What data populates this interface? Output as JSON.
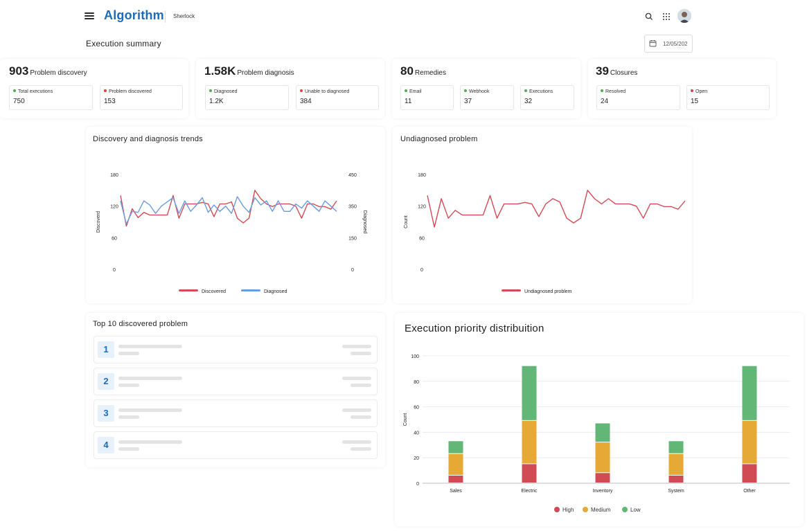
{
  "header": {
    "app_name": "Algorithm",
    "product": "Sherlock",
    "page_title": "Execution summary",
    "date_value": "12/05/202",
    "icons": [
      "menu-icon",
      "search-icon",
      "apps-grid-icon",
      "user-avatar"
    ]
  },
  "summary": [
    {
      "value": "903",
      "label": "Problem discovery",
      "stats": [
        {
          "label": "Total executions",
          "value": "750",
          "color": "#4caf50"
        },
        {
          "label": "Problem discovered",
          "value": "153",
          "color": "#d9453b"
        }
      ]
    },
    {
      "value": "1.58K",
      "label": "Problem diagnosis",
      "stats": [
        {
          "label": "Diagnosed",
          "value": "1.2K",
          "color": "#4caf50"
        },
        {
          "label": "Unable to diagnosed",
          "value": "384",
          "color": "#d9453b"
        }
      ]
    },
    {
      "value": "80",
      "label": "Remedies",
      "stats": [
        {
          "label": "Email",
          "value": "11",
          "color": "#4caf50"
        },
        {
          "label": "Webhook",
          "value": "37",
          "color": "#4caf50"
        },
        {
          "label": "Executions",
          "value": "32",
          "color": "#4caf50"
        }
      ]
    },
    {
      "value": "39",
      "label": "Closures",
      "stats": [
        {
          "label": "Resolved",
          "value": "24",
          "color": "#4caf50"
        },
        {
          "label": "Open",
          "value": "15",
          "color": "#d9453b"
        }
      ]
    }
  ],
  "top10": {
    "title": "Top 10 discovered problem",
    "ranks": [
      "1",
      "2",
      "3",
      "4"
    ]
  },
  "chart_data": [
    {
      "type": "line",
      "title": "Discovery and diagnosis trends",
      "ylabel": "Discoverd",
      "y2label": "Diagnosed",
      "ylim": [
        0,
        180
      ],
      "y2lim": [
        0,
        450
      ],
      "yticks": [
        "0",
        "60",
        "120",
        "180"
      ],
      "y2ticks": [
        "0",
        "150",
        "350",
        "450"
      ],
      "legend": "bottom",
      "grid": false,
      "series": [
        {
          "name": "Discovered",
          "axis": "left",
          "color": "#d14b55",
          "values": [
            140,
            82,
            115,
            98,
            108,
            103,
            103,
            103,
            103,
            140,
            97,
            124,
            124,
            124,
            127,
            124,
            100,
            124,
            124,
            128,
            97,
            88,
            97,
            150,
            134,
            124,
            119,
            124,
            124,
            124,
            120,
            97,
            124,
            124,
            119,
            119,
            114,
            130
          ]
        },
        {
          "name": "Diagnosed",
          "axis": "right",
          "color": "#6a9be0",
          "values": [
            325,
            215,
            275,
            270,
            325,
            305,
            265,
            300,
            320,
            340,
            265,
            325,
            275,
            305,
            340,
            270,
            305,
            275,
            300,
            265,
            345,
            300,
            270,
            340,
            305,
            325,
            275,
            325,
            275,
            275,
            310,
            290,
            325,
            300,
            275,
            325,
            300,
            275
          ]
        }
      ]
    },
    {
      "type": "line",
      "title": "Undiagnosed problem",
      "ylabel": "Count",
      "ylim": [
        0,
        180
      ],
      "yticks": [
        "0",
        "60",
        "120",
        "180"
      ],
      "legend": "bottom",
      "grid": false,
      "series": [
        {
          "name": "Undiagnosed problem",
          "color": "#d14b55",
          "values": [
            140,
            80,
            134,
            97,
            112,
            103,
            103,
            103,
            103,
            140,
            97,
            124,
            124,
            124,
            127,
            124,
            100,
            124,
            134,
            128,
            97,
            88,
            97,
            150,
            134,
            124,
            134,
            124,
            124,
            124,
            120,
            97,
            124,
            124,
            119,
            119,
            114,
            130
          ]
        }
      ]
    },
    {
      "type": "bar",
      "stacked": true,
      "title": "Execution priority distribuition",
      "ylabel": "Count",
      "ylim": [
        0,
        100
      ],
      "yticks": [
        "0",
        "20",
        "40",
        "60",
        "80",
        "100"
      ],
      "grid": true,
      "legend": "bottom",
      "categories": [
        "Sales",
        "Electric",
        "Inventory",
        "System",
        "Other"
      ],
      "series": [
        {
          "name": "High",
          "color": "#d14b55",
          "values": [
            6,
            15,
            8,
            6,
            15
          ]
        },
        {
          "name": "Medium",
          "color": "#e6a935",
          "values": [
            17,
            34,
            24,
            17,
            34
          ]
        },
        {
          "name": "Low",
          "color": "#62b776",
          "values": [
            10,
            43,
            15,
            10,
            43
          ]
        }
      ]
    }
  ]
}
